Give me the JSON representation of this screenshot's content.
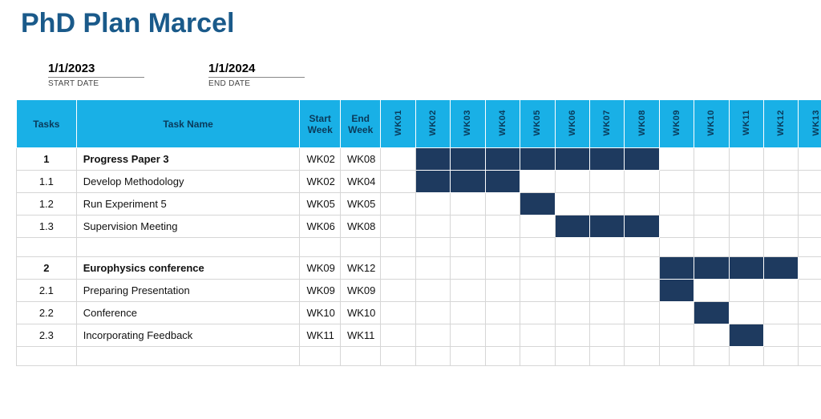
{
  "title": "PhD Plan Marcel",
  "dates": {
    "start": {
      "label": "START DATE",
      "value": "1/1/2023"
    },
    "end": {
      "label": "END DATE",
      "value": "1/1/2024"
    }
  },
  "columns": {
    "tasks": "Tasks",
    "taskName": "Task Name",
    "startWeek": "Start Week",
    "endWeek": "End Week"
  },
  "weeks": [
    "WK01",
    "WK02",
    "WK03",
    "WK04",
    "WK05",
    "WK06",
    "WK07",
    "WK08",
    "WK09",
    "WK10",
    "WK11",
    "WK12",
    "WK13"
  ],
  "colors": {
    "header_bg": "#19b0e6",
    "header_text": "#0a3a5a",
    "title_text": "#1a5a8a",
    "bar_fill": "#1e3a5f",
    "grid": "#d6d6d6",
    "background": "#ffffff"
  },
  "rows": [
    {
      "id": "1",
      "name": "Progress Paper 3",
      "start": "WK02",
      "end": "WK08",
      "bold": true,
      "barStart": 2,
      "barEnd": 8
    },
    {
      "id": "1.1",
      "name": "Develop Methodology",
      "start": "WK02",
      "end": "WK04",
      "bold": false,
      "barStart": 2,
      "barEnd": 4
    },
    {
      "id": "1.2",
      "name": "Run Experiment 5",
      "start": "WK05",
      "end": "WK05",
      "bold": false,
      "barStart": 5,
      "barEnd": 5
    },
    {
      "id": "1.3",
      "name": "Supervision Meeting",
      "start": "WK06",
      "end": "WK08",
      "bold": false,
      "barStart": 6,
      "barEnd": 8
    },
    {
      "spacer": true
    },
    {
      "id": "2",
      "name": "Europhysics conference",
      "start": "WK09",
      "end": "WK12",
      "bold": true,
      "barStart": 9,
      "barEnd": 12
    },
    {
      "id": "2.1",
      "name": "Preparing Presentation",
      "start": "WK09",
      "end": "WK09",
      "bold": false,
      "barStart": 9,
      "barEnd": 9
    },
    {
      "id": "2.2",
      "name": "Conference",
      "start": "WK10",
      "end": "WK10",
      "bold": false,
      "barStart": 10,
      "barEnd": 10
    },
    {
      "id": "2.3",
      "name": "Incorporating Feedback",
      "start": "WK11",
      "end": "WK11",
      "bold": false,
      "barStart": 11,
      "barEnd": 11
    },
    {
      "spacer": true
    }
  ]
}
